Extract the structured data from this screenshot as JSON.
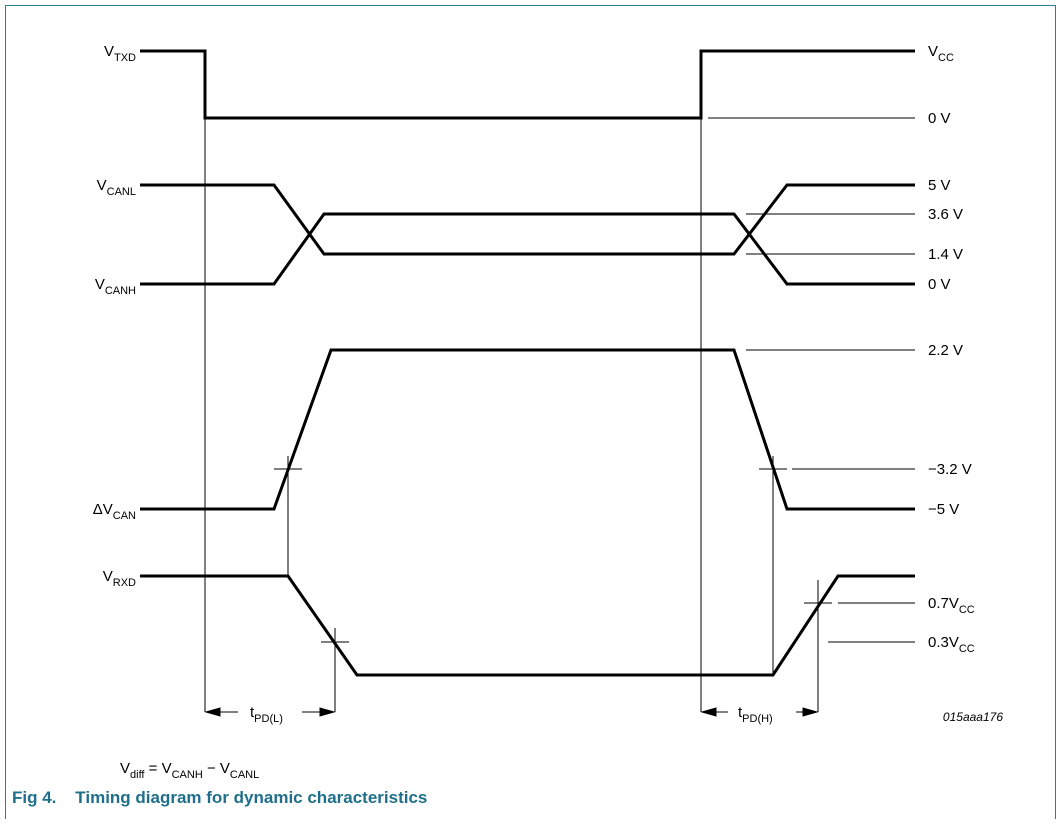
{
  "signals": {
    "txd": {
      "base": "V",
      "sub": "TXD"
    },
    "canl": {
      "base": "V",
      "sub": "CANL"
    },
    "canh": {
      "base": "V",
      "sub": "CANH"
    },
    "dcan": {
      "base": "ΔV",
      "sub": "CAN"
    },
    "rxd": {
      "base": "V",
      "sub": "RXD"
    }
  },
  "levels": {
    "vcc": {
      "base": "V",
      "sub": "CC"
    },
    "txd_0": "0 V",
    "can_5": "5 V",
    "can_36": "3.6 V",
    "can_14": "1.4 V",
    "can_0": "0 V",
    "d_22": "2.2 V",
    "d_m32": "−3.2 V",
    "d_m5": "−5 V",
    "r_07": {
      "base": "0.7V",
      "sub": "CC"
    },
    "r_03": {
      "base": "0.3V",
      "sub": "CC"
    }
  },
  "timing": {
    "tpdl": {
      "base": "t",
      "sub": "PD(L)"
    },
    "tpdh": {
      "base": "t",
      "sub": "PD(H)"
    }
  },
  "figure_id": "015aaa176",
  "formula": {
    "v": "V",
    "diff": "diff",
    "eq": " = V",
    "canh": "CANH",
    "minus": " − V",
    "canl": "CANL"
  },
  "caption": "Fig 4.    Timing diagram for dynamic characteristics"
}
